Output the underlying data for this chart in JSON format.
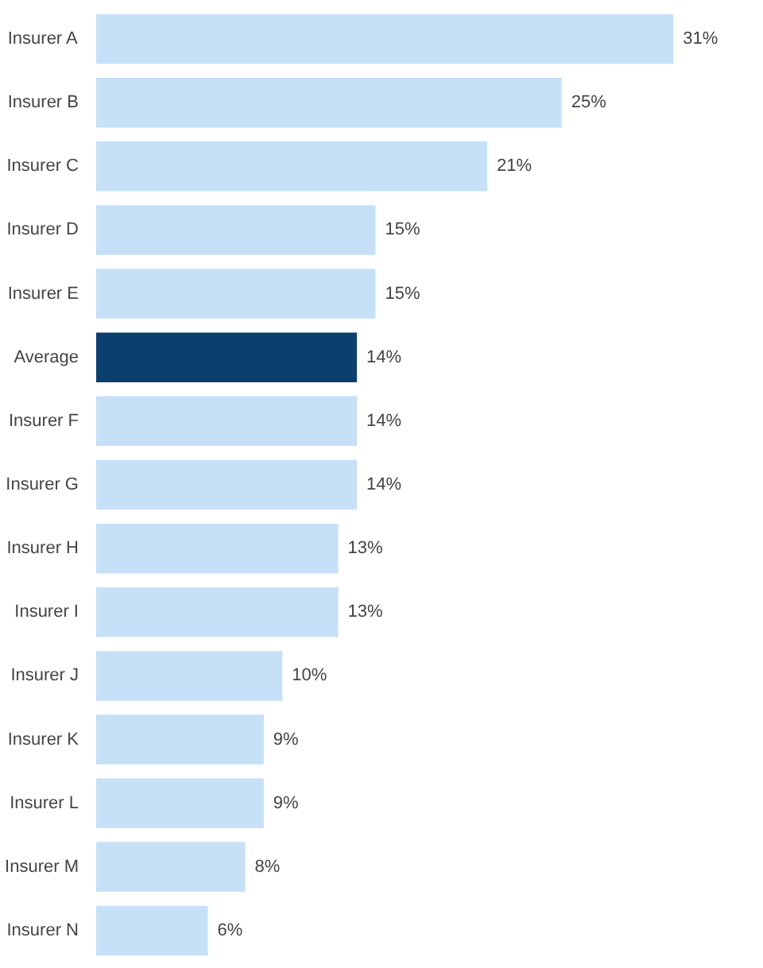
{
  "chart_data": {
    "type": "bar",
    "orientation": "horizontal",
    "categories": [
      "Insurer A",
      "Insurer B",
      "Insurer C",
      "Insurer D",
      "Insurer E",
      "Average",
      "Insurer F",
      "Insurer G",
      "Insurer H",
      "Insurer I",
      "Insurer J",
      "Insurer K",
      "Insurer L",
      "Insurer M",
      "Insurer N"
    ],
    "values": [
      31,
      25,
      21,
      15,
      15,
      14,
      14,
      14,
      13,
      13,
      10,
      9,
      9,
      8,
      6
    ],
    "colors": [
      "#c6e0f8",
      "#c6e0f8",
      "#c6e0f8",
      "#c6e0f8",
      "#c6e0f8",
      "#0b3f6e",
      "#c6e0f8",
      "#c6e0f8",
      "#c6e0f8",
      "#c6e0f8",
      "#c6e0f8",
      "#c6e0f8",
      "#c6e0f8",
      "#c6e0f8",
      "#c6e0f8"
    ],
    "value_labels": [
      "31%",
      "25%",
      "21%",
      "15%",
      "15%",
      "14%",
      "14%",
      "14%",
      "13%",
      "13%",
      "10%",
      "9%",
      "9%",
      "8%",
      "6%"
    ],
    "grid": false
  }
}
